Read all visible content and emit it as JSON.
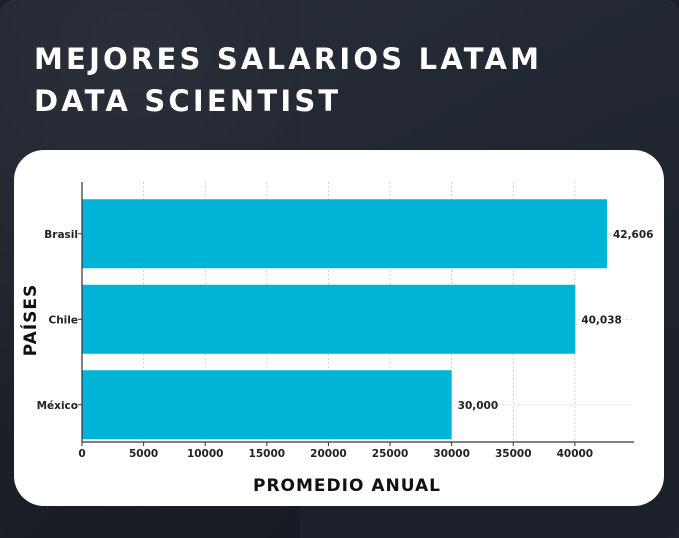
{
  "header": {
    "title_line1": "MEJORES SALARIOS LATAM",
    "title_line2": "DATA SCIENTIST"
  },
  "chart_data": {
    "type": "bar",
    "orientation": "horizontal",
    "categories": [
      "Brasil",
      "Chile",
      "México"
    ],
    "values": [
      42606,
      40038,
      30000
    ],
    "value_labels": [
      "42,606",
      "40,038",
      "30,000"
    ],
    "xlabel": "PROMEDIO ANUAL",
    "ylabel": "PAÍSES",
    "xlim": [
      0,
      44800
    ],
    "xticks": [
      0,
      5000,
      10000,
      15000,
      20000,
      25000,
      30000,
      35000,
      40000
    ],
    "grid": true,
    "bar_color": "#00b4d8"
  }
}
